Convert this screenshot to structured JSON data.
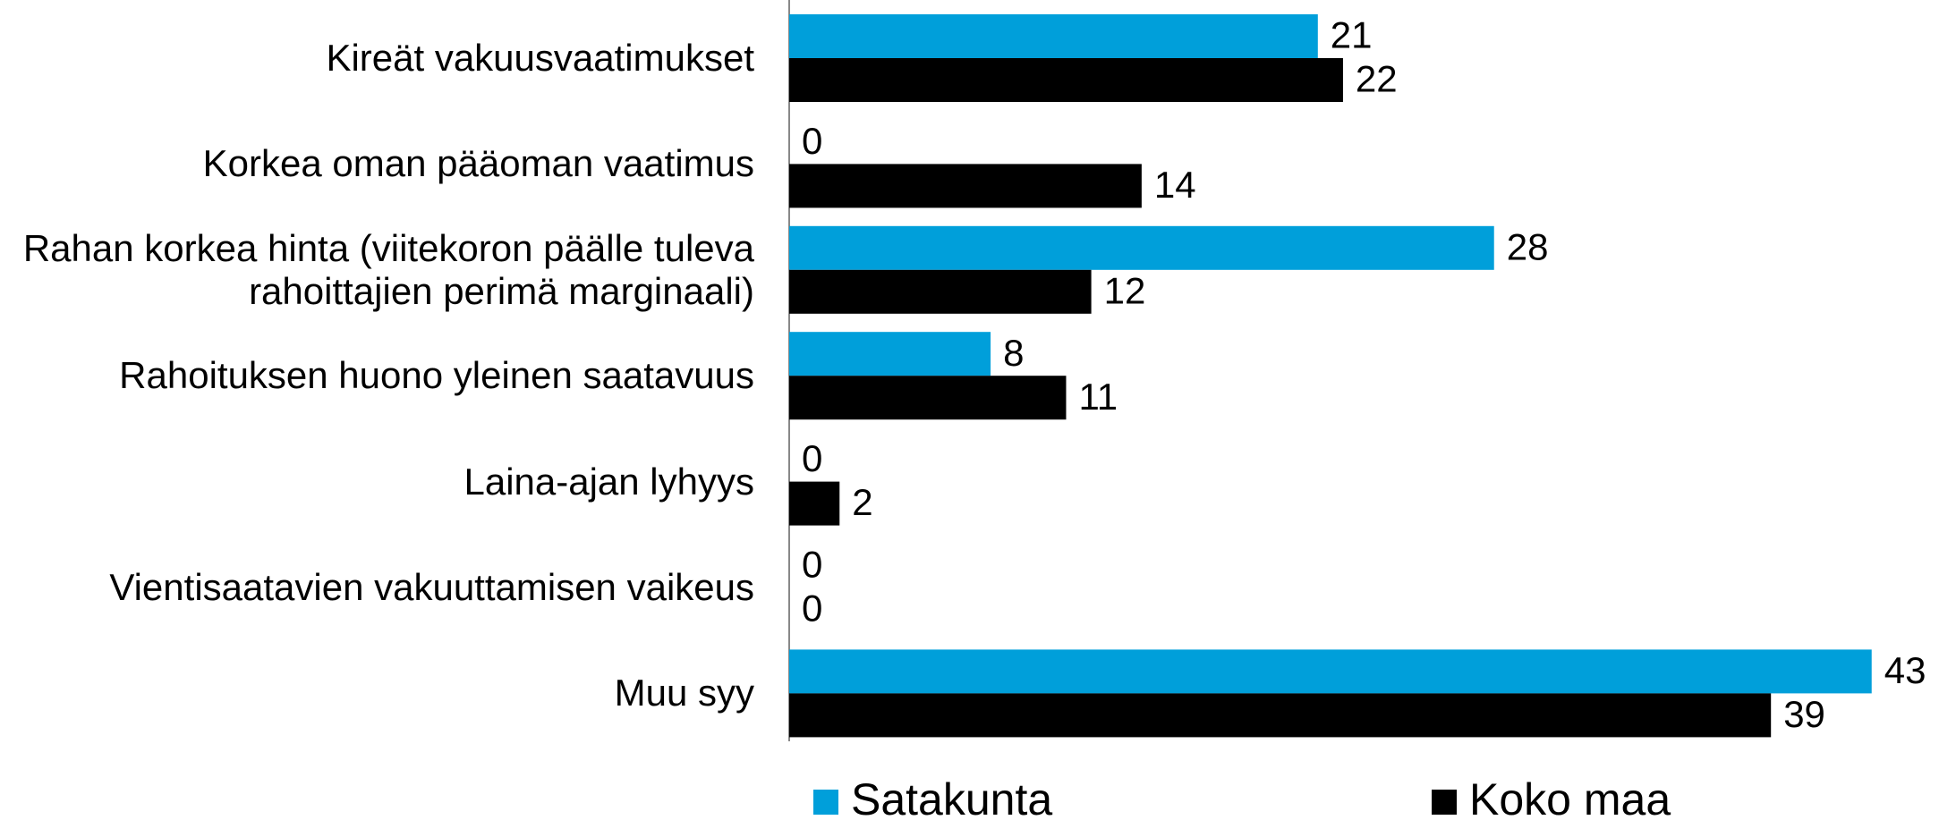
{
  "chart_data": {
    "type": "bar",
    "orientation": "horizontal",
    "categories": [
      "Kireät vakuusvaatimukset",
      "Korkea oman pääoman vaatimus",
      "Rahan korkea hinta (viitekoron päälle tuleva\nrahoittajien perimä marginaali)",
      "Rahoituksen huono yleinen saatavuus",
      "Laina-ajan lyhyys",
      "Vientisaatavien vakuuttamisen vaikeus",
      "Muu syy"
    ],
    "series": [
      {
        "name": "Satakunta",
        "color": "#009fda",
        "values": [
          21,
          0,
          28,
          8,
          0,
          0,
          43
        ]
      },
      {
        "name": "Koko maa",
        "color": "#000000",
        "values": [
          22,
          14,
          12,
          11,
          2,
          0,
          39
        ]
      }
    ],
    "xlim": [
      0,
      45
    ],
    "legend": "bottom"
  }
}
